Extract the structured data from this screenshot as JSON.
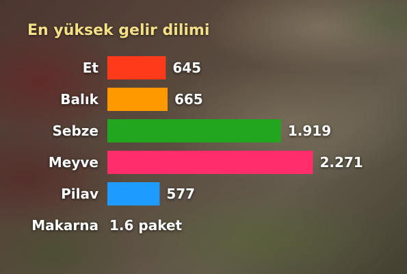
{
  "chart_data": {
    "type": "bar",
    "orientation": "horizontal",
    "title": "En yüksek gelir dilimi",
    "categories": [
      "Et",
      "Balık",
      "Sebze",
      "Meyve",
      "Pilav",
      "Makarna"
    ],
    "values": [
      645,
      665,
      1919,
      2271,
      577,
      null
    ],
    "value_labels": [
      "645",
      "665",
      "1.919",
      "2.271",
      "577",
      "1.6 paket"
    ],
    "colors": [
      "#ff3a1a",
      "#ff9900",
      "#22a51f",
      "#ff2e6b",
      "#1e9bff",
      null
    ],
    "xlim": [
      0,
      2400
    ],
    "grid": false,
    "legend": "none"
  }
}
